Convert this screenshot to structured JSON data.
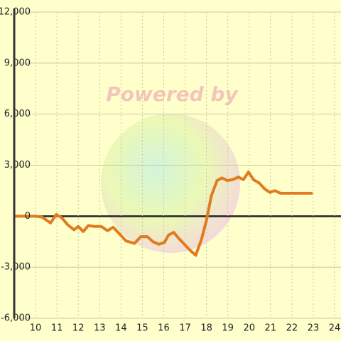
{
  "chart_data": {
    "type": "line",
    "watermark": "Powered by",
    "x": [
      9,
      10,
      10.3,
      10.7,
      10.97,
      11.23,
      11.5,
      11.8,
      12.0,
      12.23,
      12.47,
      12.73,
      13.07,
      13.37,
      13.63,
      13.9,
      14.23,
      14.63,
      14.93,
      15.23,
      15.5,
      15.77,
      16.03,
      16.23,
      16.47,
      16.7,
      16.97,
      17.23,
      17.5,
      17.77,
      18.0,
      18.23,
      18.5,
      18.73,
      18.97,
      19.23,
      19.5,
      19.73,
      19.97,
      20.2,
      20.47,
      20.73,
      20.97,
      21.2,
      21.47,
      21.97,
      22.97
    ],
    "series": [
      {
        "color": "#e07b20",
        "values": [
          0,
          0,
          -50,
          -400,
          100,
          -100,
          -500,
          -800,
          -600,
          -900,
          -550,
          -600,
          -600,
          -850,
          -650,
          -1000,
          -1450,
          -1600,
          -1200,
          -1200,
          -1500,
          -1650,
          -1550,
          -1100,
          -950,
          -1300,
          -1650,
          -2000,
          -2300,
          -1350,
          -250,
          1200,
          2100,
          2250,
          2100,
          2150,
          2300,
          2150,
          2600,
          2150,
          1950,
          1600,
          1400,
          1500,
          1350,
          1350,
          1350
        ]
      }
    ],
    "xlim": [
      9,
      24.3
    ],
    "xticks": [
      10,
      11,
      12,
      13,
      14,
      15,
      16,
      17,
      18,
      19,
      20,
      21,
      22,
      23,
      24
    ],
    "ylim": [
      -6000,
      12000
    ],
    "yticks": [
      {
        "value": -6000,
        "label": "-6,000"
      },
      {
        "value": -3000,
        "label": "-3,000"
      },
      0,
      {
        "value": 3000,
        "label": "3,000"
      },
      {
        "value": 6000,
        "label": "6,000"
      },
      {
        "value": 9000,
        "label": "9,000"
      },
      {
        "value": 12000,
        "label": "12,000"
      }
    ],
    "grid": true
  }
}
